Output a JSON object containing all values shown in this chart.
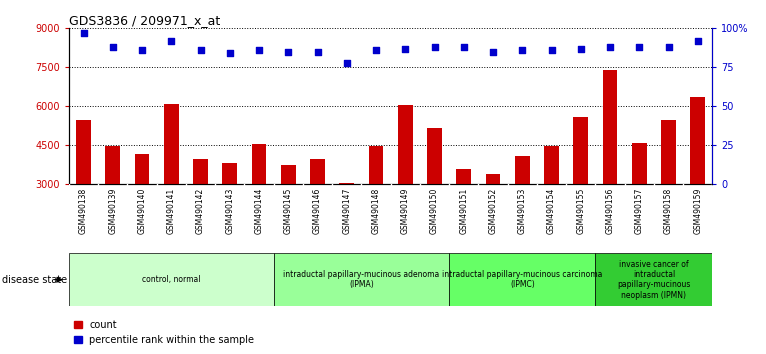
{
  "title": "GDS3836 / 209971_x_at",
  "samples": [
    "GSM490138",
    "GSM490139",
    "GSM490140",
    "GSM490141",
    "GSM490142",
    "GSM490143",
    "GSM490144",
    "GSM490145",
    "GSM490146",
    "GSM490147",
    "GSM490148",
    "GSM490149",
    "GSM490150",
    "GSM490151",
    "GSM490152",
    "GSM490153",
    "GSM490154",
    "GSM490155",
    "GSM490156",
    "GSM490157",
    "GSM490158",
    "GSM490159"
  ],
  "counts": [
    5450,
    4450,
    4150,
    6100,
    3950,
    3800,
    4550,
    3750,
    3950,
    3050,
    4450,
    6050,
    5150,
    3600,
    3400,
    4100,
    4450,
    5600,
    7400,
    4600,
    5450,
    6350
  ],
  "percentile_ranks": [
    97,
    88,
    86,
    92,
    86,
    84,
    86,
    85,
    85,
    78,
    86,
    87,
    88,
    88,
    85,
    86,
    86,
    87,
    88,
    88,
    88,
    92
  ],
  "groups": [
    {
      "label": "control, normal",
      "start": 0,
      "end": 7,
      "color": "#ccffcc"
    },
    {
      "label": "intraductal papillary-mucinous adenoma\n(IPMA)",
      "start": 7,
      "end": 13,
      "color": "#99ff99"
    },
    {
      "label": "intraductal papillary-mucinous carcinoma\n(IPMC)",
      "start": 13,
      "end": 18,
      "color": "#66ff66"
    },
    {
      "label": "invasive cancer of\nintraductal\npapillary-mucinous\nneoplasm (IPMN)",
      "start": 18,
      "end": 22,
      "color": "#33cc33"
    }
  ],
  "bar_color": "#cc0000",
  "dot_color": "#0000cc",
  "ylim_left": [
    3000,
    9000
  ],
  "yticks_left": [
    3000,
    4500,
    6000,
    7500,
    9000
  ],
  "ylim_right": [
    0,
    100
  ],
  "yticks_right": [
    0,
    25,
    50,
    75,
    100
  ],
  "ylabel_left_color": "#cc0000",
  "ylabel_right_color": "#0000cc",
  "plot_bg_color": "#ffffff",
  "sample_box_color": "#c8c8c8",
  "legend_count_color": "#cc0000",
  "legend_pct_color": "#0000cc",
  "bar_width": 0.5
}
